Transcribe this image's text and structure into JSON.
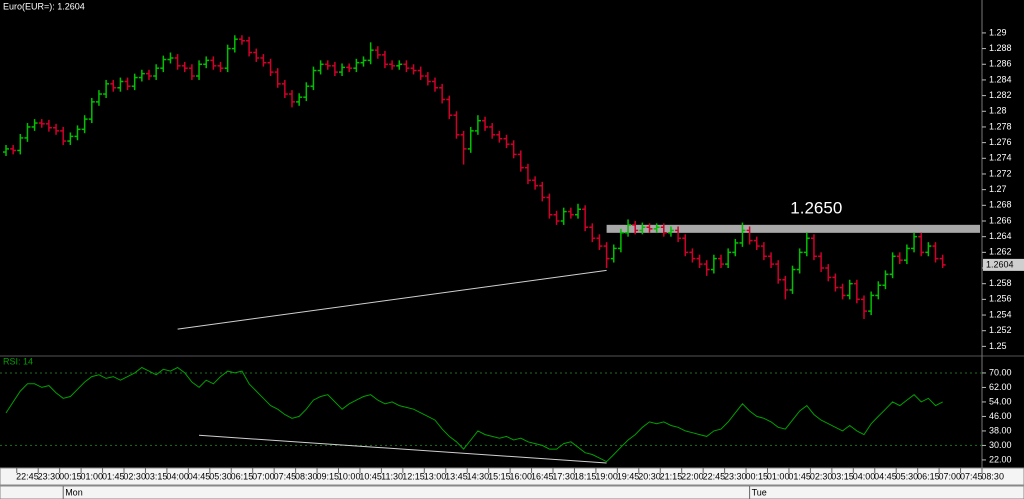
{
  "chart_data": [
    {
      "type": "ohlc",
      "title": "Euro(EUR=): 1.2604",
      "categories": [
        null,
        null,
        null,
        "22:45",
        null,
        null,
        "23:30",
        null,
        null,
        "00:15",
        null,
        null,
        "01:00",
        null,
        null,
        "01:45",
        null,
        null,
        "02:30",
        null,
        null,
        "03:15",
        null,
        null,
        "04:00",
        null,
        null,
        "04:45",
        null,
        null,
        "05:30",
        null,
        null,
        "06:15",
        null,
        null,
        "07:00",
        null,
        null,
        "07:45",
        null,
        null,
        "08:30",
        null,
        null,
        "09:15",
        null,
        null,
        "10:00",
        null,
        null,
        "10:45",
        null,
        null,
        "11:30",
        null,
        null,
        "12:15",
        null,
        null,
        "13:00",
        null,
        null,
        "13:45",
        null,
        null,
        "14:30",
        null,
        null,
        "15:15",
        null,
        null,
        "16:00",
        null,
        null,
        "16:45",
        null,
        null,
        "17:30",
        null,
        null,
        "18:15",
        null,
        null,
        "19:00",
        null,
        null,
        "19:45",
        null,
        null,
        "20:30",
        null,
        null,
        "21:15",
        null,
        null,
        "22:00",
        null,
        null,
        "22:45",
        null,
        null,
        "23:30",
        null,
        null,
        "00:15",
        null,
        null,
        "01:00",
        null,
        null,
        "01:45",
        null,
        null,
        "02:30",
        null,
        null,
        "03:15",
        null,
        null,
        "04:00",
        null,
        null,
        "04:45",
        null,
        null,
        "05:30",
        null,
        null,
        "06:15",
        null,
        null,
        "07:00",
        null,
        null,
        "07:45",
        null,
        null,
        "08:30"
      ],
      "open": [
        1.2748,
        1.2752,
        1.275,
        1.2766,
        1.278,
        1.2785,
        1.2784,
        1.2779,
        1.2775,
        1.2762,
        1.2768,
        1.2777,
        1.279,
        1.2812,
        1.2822,
        1.2835,
        1.283,
        1.2838,
        1.2832,
        1.2843,
        1.2848,
        1.2845,
        1.2855,
        1.2866,
        1.2868,
        1.2858,
        1.2855,
        1.2845,
        1.286,
        1.2865,
        1.2858,
        1.2855,
        1.288,
        1.2892,
        1.289,
        1.2875,
        1.2868,
        1.2862,
        1.285,
        1.2835,
        1.2822,
        1.2812,
        1.2818,
        1.2832,
        1.2852,
        1.286,
        1.2858,
        1.285,
        1.2856,
        1.2855,
        1.2862,
        1.2865,
        1.2878,
        1.2872,
        1.286,
        1.2858,
        1.286,
        1.2855,
        1.2852,
        1.2845,
        1.2838,
        1.283,
        1.2815,
        1.2795,
        1.277,
        1.2752,
        1.2775,
        1.2788,
        1.278,
        1.277,
        1.2765,
        1.2758,
        1.2745,
        1.2728,
        1.2712,
        1.2705,
        1.269,
        1.2668,
        1.266,
        1.2672,
        1.2668,
        1.2675,
        1.2652,
        1.2638,
        1.2628,
        1.2612,
        1.2625,
        1.2645,
        1.2655,
        1.2648,
        1.2652,
        1.265,
        1.2652,
        1.2645,
        1.2648,
        1.2638,
        1.262,
        1.2612,
        1.2605,
        1.2598,
        1.2612,
        1.2605,
        1.262,
        1.2632,
        1.2648,
        1.2635,
        1.2628,
        1.2615,
        1.2605,
        1.2585,
        1.2572,
        1.2598,
        1.262,
        1.2638,
        1.2615,
        1.26,
        1.2588,
        1.2575,
        1.2565,
        1.258,
        1.256,
        1.2545,
        1.2565,
        1.2578,
        1.2592,
        1.2615,
        1.261,
        1.2625,
        1.264,
        1.262,
        1.2628,
        1.2612,
        null,
        null,
        null,
        null,
        null,
        null,
        null
      ],
      "high": [
        1.2757,
        1.2757,
        1.2771,
        1.2785,
        1.279,
        1.279,
        1.2789,
        1.2784,
        1.278,
        1.2773,
        1.2782,
        1.2795,
        1.2817,
        1.2827,
        1.284,
        1.284,
        1.2843,
        1.2843,
        1.2848,
        1.2853,
        1.2853,
        1.286,
        1.2871,
        1.2875,
        1.2873,
        1.2863,
        1.286,
        1.2865,
        1.287,
        1.287,
        1.2863,
        1.2885,
        1.2897,
        1.2897,
        1.2895,
        1.288,
        1.2873,
        1.2867,
        1.2855,
        1.284,
        1.2827,
        1.2823,
        1.2837,
        1.2857,
        1.2865,
        1.2865,
        1.2863,
        1.2861,
        1.2861,
        1.2867,
        1.287,
        1.2888,
        1.2883,
        1.2877,
        1.2865,
        1.2865,
        1.2865,
        1.286,
        1.2857,
        1.285,
        1.2843,
        1.2835,
        1.282,
        1.28,
        1.2775,
        1.278,
        1.2795,
        1.2793,
        1.2785,
        1.2775,
        1.277,
        1.2763,
        1.275,
        1.2733,
        1.2717,
        1.271,
        1.2695,
        1.2673,
        1.2677,
        1.2677,
        1.2682,
        1.268,
        1.2657,
        1.2643,
        1.2633,
        1.263,
        1.265,
        1.2662,
        1.266,
        1.2658,
        1.2657,
        1.2657,
        1.2657,
        1.2653,
        1.2653,
        1.2643,
        1.2625,
        1.2617,
        1.261,
        1.2617,
        1.2617,
        1.2625,
        1.2637,
        1.2658,
        1.2653,
        1.264,
        1.2633,
        1.262,
        1.261,
        1.259,
        1.2603,
        1.2625,
        1.2645,
        1.2643,
        1.262,
        1.2605,
        1.2593,
        1.258,
        1.2585,
        1.2585,
        1.2565,
        1.257,
        1.2583,
        1.2597,
        1.262,
        1.262,
        1.263,
        1.2645,
        1.2645,
        1.2633,
        1.2633,
        1.2617,
        null,
        null,
        null,
        null,
        null,
        null,
        null
      ],
      "low": [
        1.2743,
        1.2745,
        1.2745,
        1.2761,
        1.2775,
        1.2779,
        1.2774,
        1.277,
        1.2757,
        1.2757,
        1.2763,
        1.2772,
        1.2785,
        1.2807,
        1.2817,
        1.2825,
        1.2825,
        1.2827,
        1.2827,
        1.2838,
        1.284,
        1.284,
        1.285,
        1.2861,
        1.2853,
        1.285,
        1.284,
        1.284,
        1.2855,
        1.2853,
        1.285,
        1.285,
        1.2875,
        1.2885,
        1.287,
        1.2863,
        1.2857,
        1.2845,
        1.283,
        1.2817,
        1.2805,
        1.2807,
        1.2813,
        1.2827,
        1.2847,
        1.2853,
        1.2845,
        1.2845,
        1.285,
        1.285,
        1.2857,
        1.286,
        1.2867,
        1.2855,
        1.2853,
        1.2853,
        1.285,
        1.2847,
        1.284,
        1.2833,
        1.2825,
        1.281,
        1.279,
        1.2765,
        1.2732,
        1.2747,
        1.277,
        1.2775,
        1.2765,
        1.276,
        1.2753,
        1.274,
        1.2723,
        1.2707,
        1.27,
        1.2685,
        1.2663,
        1.2655,
        1.2655,
        1.2663,
        1.2663,
        1.2647,
        1.2633,
        1.2623,
        1.26,
        1.2607,
        1.262,
        1.264,
        1.2643,
        1.2643,
        1.2645,
        1.2645,
        1.264,
        1.264,
        1.2633,
        1.2615,
        1.2607,
        1.26,
        1.259,
        1.2593,
        1.26,
        1.26,
        1.2615,
        1.2627,
        1.263,
        1.2623,
        1.261,
        1.26,
        1.258,
        1.256,
        1.2567,
        1.2593,
        1.2615,
        1.261,
        1.2595,
        1.2583,
        1.257,
        1.256,
        1.256,
        1.2555,
        1.2535,
        1.254,
        1.256,
        1.2573,
        1.2587,
        1.2605,
        1.2605,
        1.262,
        1.2615,
        1.2615,
        1.2607,
        1.26,
        null,
        null,
        null,
        null,
        null,
        null,
        null
      ],
      "close": [
        1.2752,
        1.275,
        1.2766,
        1.278,
        1.2785,
        1.2784,
        1.2779,
        1.2775,
        1.2762,
        1.2768,
        1.2777,
        1.279,
        1.2812,
        1.2822,
        1.2835,
        1.283,
        1.2838,
        1.2832,
        1.2843,
        1.2848,
        1.2845,
        1.2855,
        1.2866,
        1.2868,
        1.2858,
        1.2855,
        1.2845,
        1.286,
        1.2865,
        1.2858,
        1.2855,
        1.288,
        1.2892,
        1.289,
        1.2875,
        1.2868,
        1.2862,
        1.285,
        1.2835,
        1.2822,
        1.2812,
        1.2818,
        1.2832,
        1.2852,
        1.286,
        1.2858,
        1.285,
        1.2856,
        1.2855,
        1.2862,
        1.2865,
        1.2878,
        1.2872,
        1.286,
        1.2858,
        1.286,
        1.2855,
        1.2852,
        1.2845,
        1.2838,
        1.283,
        1.2815,
        1.2795,
        1.277,
        1.2752,
        1.2775,
        1.2788,
        1.278,
        1.277,
        1.2765,
        1.2758,
        1.2745,
        1.2728,
        1.2712,
        1.2705,
        1.269,
        1.2668,
        1.266,
        1.2672,
        1.2668,
        1.2675,
        1.2652,
        1.2638,
        1.2628,
        1.2612,
        1.2625,
        1.2645,
        1.2655,
        1.2648,
        1.2652,
        1.265,
        1.2652,
        1.2645,
        1.2648,
        1.2638,
        1.262,
        1.2612,
        1.2605,
        1.2598,
        1.2612,
        1.2605,
        1.262,
        1.2632,
        1.2648,
        1.2635,
        1.2628,
        1.2615,
        1.2605,
        1.2585,
        1.2572,
        1.2598,
        1.262,
        1.2638,
        1.2615,
        1.26,
        1.2588,
        1.2575,
        1.2565,
        1.258,
        1.256,
        1.2545,
        1.2565,
        1.2578,
        1.2592,
        1.2615,
        1.261,
        1.2625,
        1.264,
        1.262,
        1.2628,
        1.2612,
        1.2604,
        null,
        null,
        null,
        null,
        null,
        null,
        null
      ],
      "up_color": "#00c000",
      "down_color": "#d0002a",
      "ylim": [
        1.2489,
        1.2942
      ],
      "yticks": [
        1.25,
        1.252,
        1.254,
        1.256,
        1.258,
        1.26,
        1.262,
        1.264,
        1.266,
        1.268,
        1.27,
        1.272,
        1.274,
        1.276,
        1.278,
        1.28,
        1.282,
        1.284,
        1.286,
        1.288,
        1.29
      ],
      "last_price": 1.2604,
      "annotations": [
        {
          "label": "1.2650",
          "value": 1.265,
          "x": "19:00",
          "color": "#a8a8a8"
        }
      ],
      "trendline": {
        "x": [
          "19:00",
          "04:00"
        ],
        "values": [
          1.2597,
          1.2522
        ],
        "color": "#d0d0d0"
      },
      "days": [
        "Mon",
        "Tue"
      ]
    },
    {
      "type": "line",
      "title": "RSI: 14",
      "values": [
        47.9,
        54,
        60,
        64,
        64,
        62,
        63,
        59,
        56,
        57,
        61,
        65,
        68,
        69,
        67,
        68,
        66,
        68,
        70,
        73,
        71,
        69,
        72,
        71,
        73,
        70,
        65,
        62,
        66,
        64,
        68,
        71,
        70,
        71,
        64,
        60,
        56,
        52,
        50,
        47,
        45,
        46,
        50,
        55,
        57,
        58,
        54,
        50,
        53,
        55,
        57,
        58,
        55,
        53,
        54,
        52,
        51,
        50,
        48,
        46,
        44,
        39,
        35,
        32,
        28,
        33,
        38,
        36,
        35,
        34,
        35,
        33,
        34,
        32,
        31,
        30,
        28,
        28,
        31,
        32,
        29,
        26,
        25,
        23,
        21,
        25,
        29,
        33,
        36,
        40,
        43,
        42,
        43,
        41,
        40,
        38,
        37,
        36,
        35,
        38,
        39,
        43,
        48,
        53,
        49,
        46,
        45,
        43,
        40,
        39,
        44,
        49,
        52,
        47,
        44,
        42,
        40,
        38,
        41,
        38,
        36,
        42,
        46,
        50,
        54,
        52,
        55,
        58,
        54,
        56,
        52,
        54,
        null,
        null,
        null,
        null,
        null,
        null,
        null
      ],
      "color": "#00a000",
      "ylim": [
        18.1,
        78.8
      ],
      "yticks": [
        {
          "value": 70,
          "label": "70.00"
        },
        {
          "value": 62,
          "label": "62.00"
        },
        {
          "value": 54,
          "label": "54.00"
        },
        {
          "value": 46,
          "label": "46.00"
        },
        {
          "value": 38,
          "label": "38.00"
        },
        {
          "value": 30,
          "label": "30.00"
        },
        {
          "value": 22,
          "label": "22.00"
        }
      ],
      "levels": [
        70,
        30
      ],
      "trendline": {
        "x": [
          "19:00",
          "04:45"
        ],
        "values": [
          20.3,
          35.6
        ],
        "color": "#d0d0d0"
      }
    }
  ]
}
